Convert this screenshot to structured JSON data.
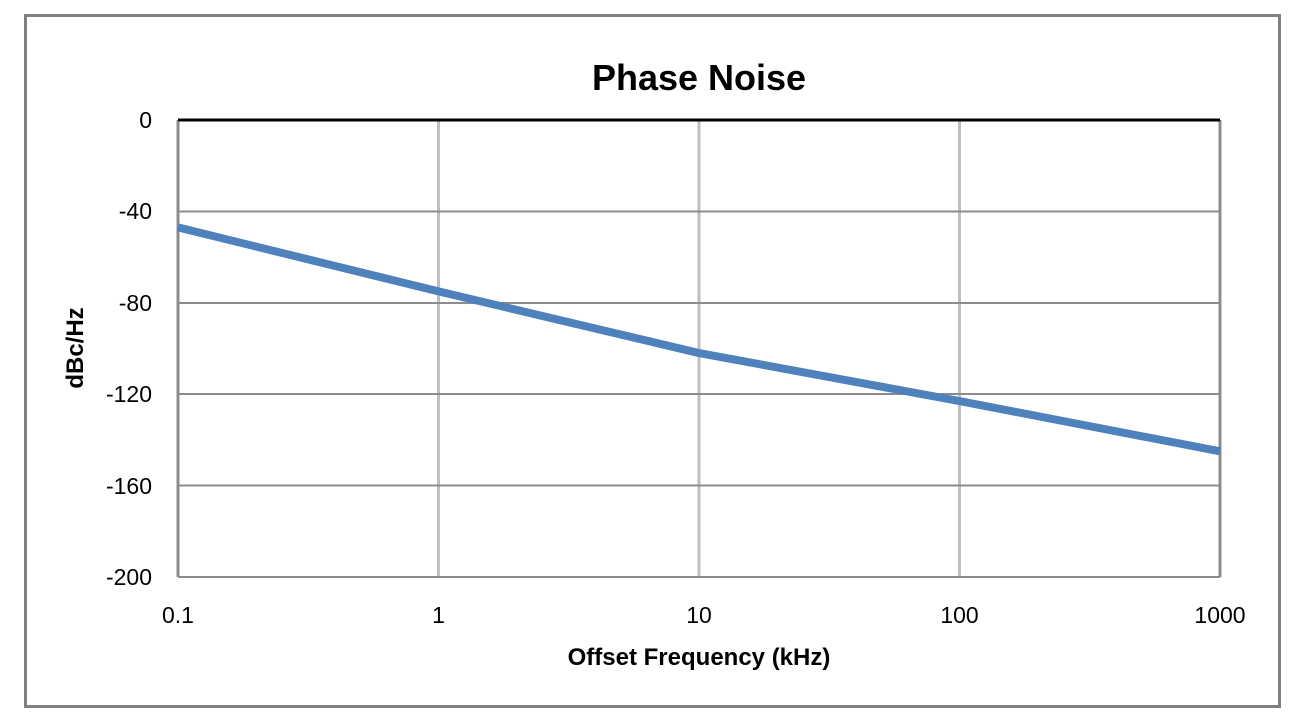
{
  "window": {
    "background": "#FFFFFF",
    "border_color": "#7F7F7F"
  },
  "chart_data": {
    "type": "line",
    "title": "Phase Noise",
    "xlabel": "Offset Frequency (kHz)",
    "ylabel": "dBc/Hz",
    "x_scale": "log",
    "xlim": [
      0.1,
      1000
    ],
    "ylim": [
      -200,
      0
    ],
    "x_tick_values": [
      0.1,
      1,
      10,
      100,
      1000
    ],
    "x_tick_labels": [
      "0.1",
      "1",
      "10",
      "100",
      "1000"
    ],
    "y_tick_values": [
      0,
      -40,
      -80,
      -120,
      -160,
      -200
    ],
    "y_tick_labels": [
      "0",
      "-40",
      "-80",
      "-120",
      "-160",
      "-200"
    ],
    "grid": true,
    "legend": "none",
    "series": [
      {
        "name": "Phase Noise",
        "x": [
          0.1,
          1,
          10,
          100,
          1000
        ],
        "y": [
          -47,
          -75,
          -102,
          -123,
          -145
        ],
        "color": "#4F81BD",
        "stroke_width": 8
      }
    ],
    "colors": {
      "top_axis_line": "#000000",
      "h_gridline": "#8C8C8C",
      "v_gridline": "#BFBFBF",
      "edge_line": "#8C8C8C",
      "text": "#000000"
    }
  }
}
